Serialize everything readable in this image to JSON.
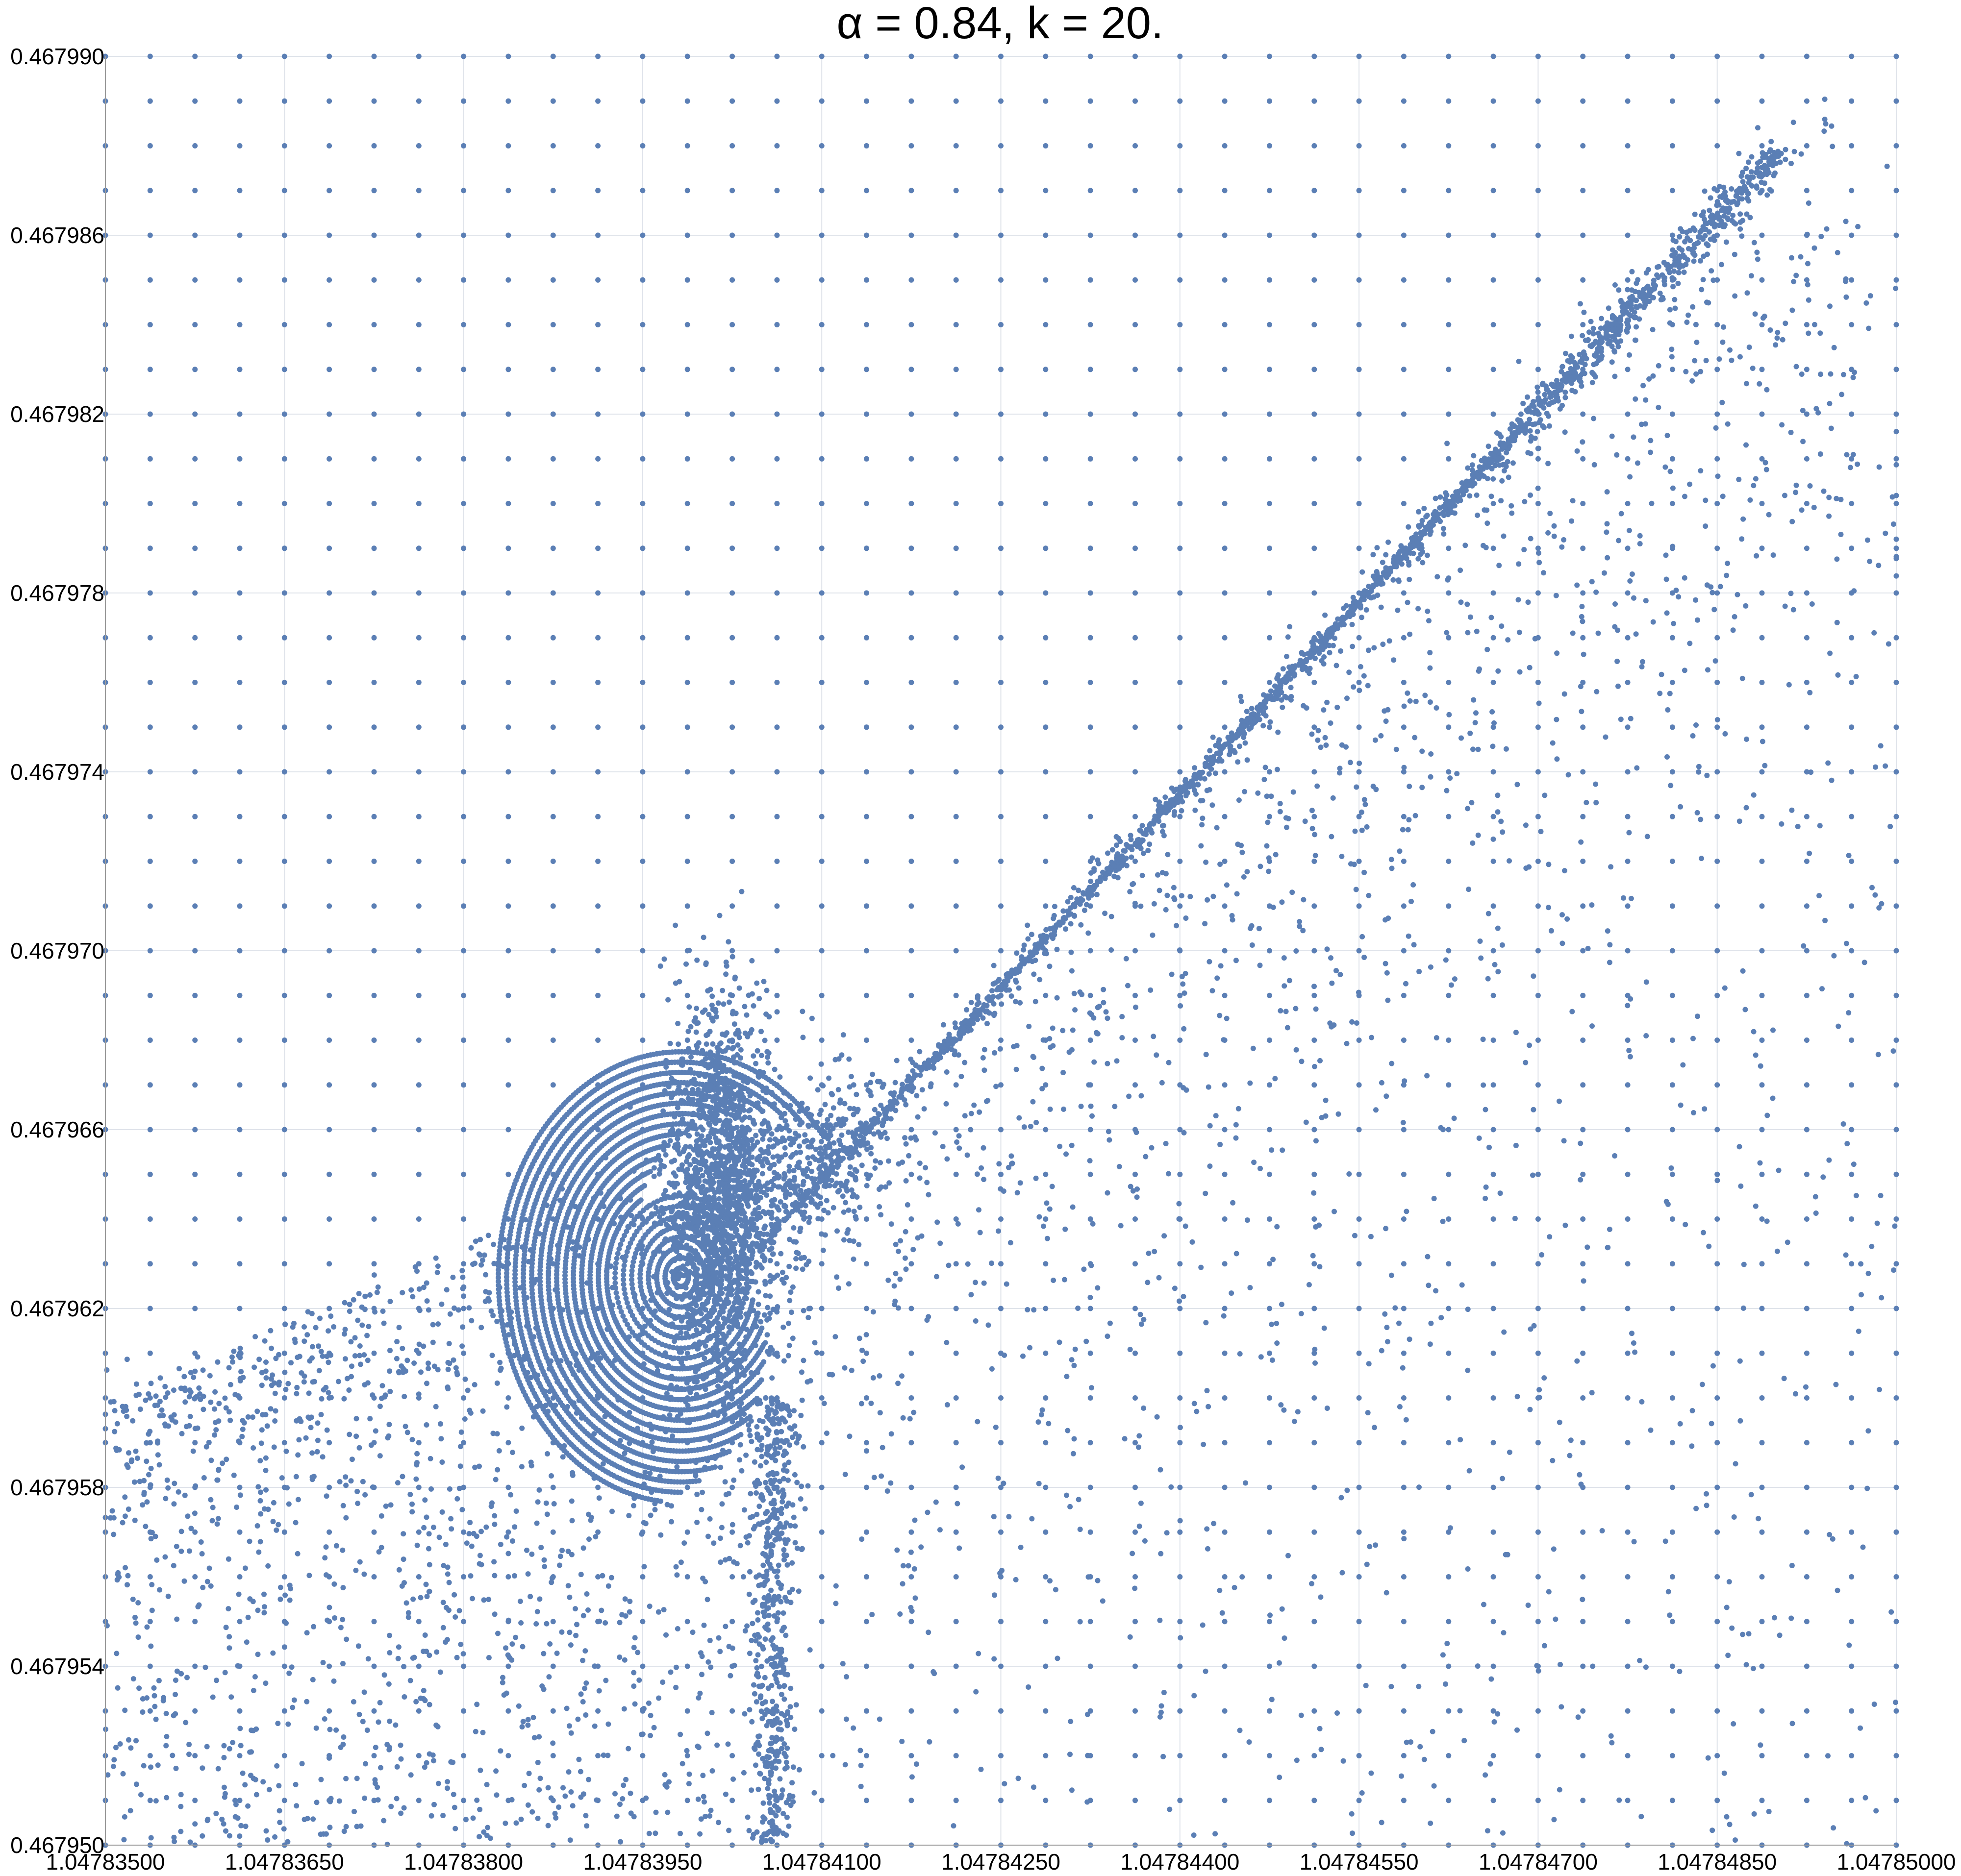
{
  "chart_data": {
    "type": "scatter",
    "title": "α = 0.84, k = 20.",
    "xlabel": "",
    "ylabel": "",
    "xlim": [
      1.047835,
      1.04785
    ],
    "ylim": [
      0.46795,
      0.46799
    ],
    "x_tick_labels": [
      "1.04783500",
      "1.04783650",
      "1.04783800",
      "1.04783950",
      "1.04784100",
      "1.04784250",
      "1.04784400",
      "1.04784550",
      "1.04784700",
      "1.04784850",
      "1.04785000"
    ],
    "y_tick_labels": [
      "0.467950",
      "0.467954",
      "0.467958",
      "0.467962",
      "0.467966",
      "0.467970",
      "0.467974",
      "0.467978",
      "0.467982",
      "0.467986",
      "0.467990"
    ],
    "grid": true,
    "legend": "none",
    "point_color": "#5b7fb5",
    "background_lattice": {
      "x_start": 1.047835,
      "x_step": 3.75e-07,
      "x_count": 41,
      "y_start": 0.46795,
      "y_step": 1e-06,
      "y_count": 41
    },
    "structures": [
      {
        "kind": "diagonal_band",
        "from": [
          1.04784035,
          0.467963
        ],
        "to": [
          1.04784905,
          0.467988
        ]
      },
      {
        "kind": "dense_core",
        "center": [
          1.04784015,
          0.4679645
        ],
        "spread": [
          5e-07,
          1.2e-06
        ]
      },
      {
        "kind": "spiral_center",
        "center": [
          1.04783982,
          0.4679627
        ]
      },
      {
        "kind": "scatter_cloud",
        "bounds_x": [
          1.047835,
          1.047841
        ],
        "bounds_y": [
          0.46795,
          0.467966
        ]
      },
      {
        "kind": "vertical_tail",
        "x": 1.0478406,
        "y_range": [
          0.46795,
          0.46796
        ]
      }
    ]
  }
}
